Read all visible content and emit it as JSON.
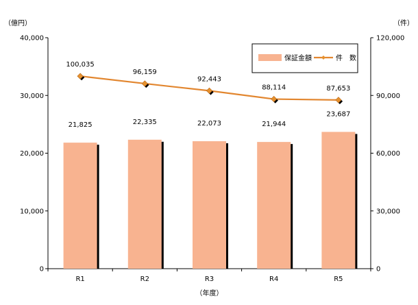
{
  "chart_data": {
    "type": "bar",
    "categories": [
      "R1",
      "R2",
      "R3",
      "R4",
      "R5"
    ],
    "series": [
      {
        "name": "保証金額",
        "type": "bar",
        "axis": "left",
        "values": [
          21825,
          22335,
          22073,
          21944,
          23687
        ],
        "color": "#F8B390"
      },
      {
        "name": "件　数",
        "type": "line",
        "axis": "right",
        "values": [
          100035,
          96159,
          92443,
          88114,
          87653
        ],
        "color": "#E2862F"
      }
    ],
    "data_labels": {
      "bar": [
        "21,825",
        "22,335",
        "22,073",
        "21,944",
        "23,687"
      ],
      "line": [
        "100,035",
        "96,159",
        "92,443",
        "88,114",
        "87,653"
      ]
    },
    "y_left": {
      "unit_label": "（億円）",
      "ylim": [
        0,
        40000
      ],
      "ticks": [
        "0",
        "10,000",
        "20,000",
        "30,000",
        "40,000"
      ]
    },
    "y_right": {
      "unit_label": "（件）",
      "ylim": [
        0,
        120000
      ],
      "ticks": [
        "0",
        "30,000",
        "60,000",
        "90,000",
        "120,000"
      ]
    },
    "xlabel": "（年度）",
    "legend": {
      "placement": "top-right"
    },
    "grid": false
  }
}
